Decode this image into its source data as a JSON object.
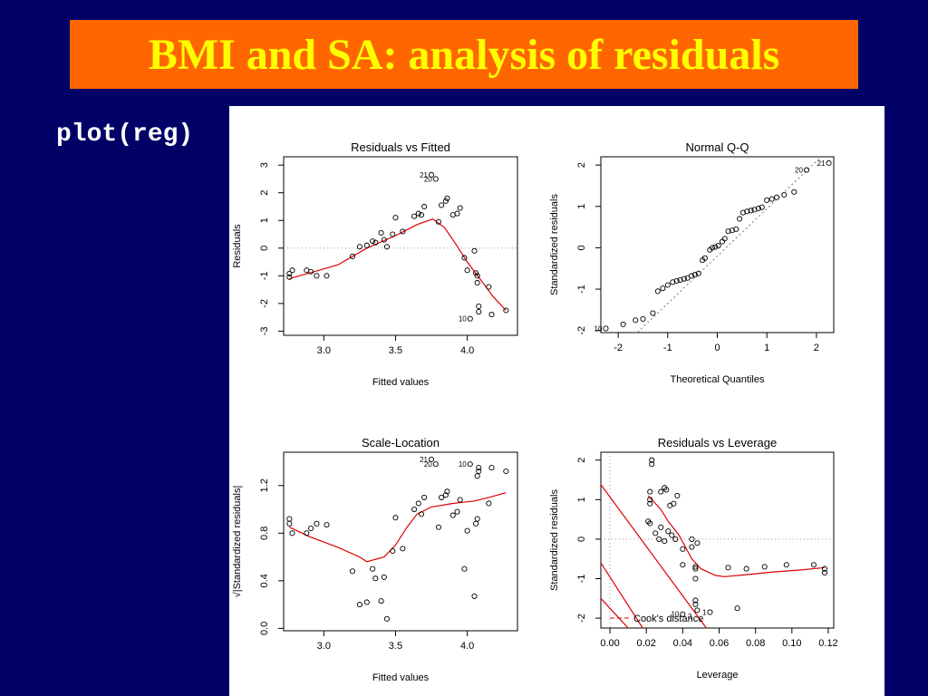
{
  "slide": {
    "title": "BMI and SA: analysis of residuals",
    "code": "plot(reg)",
    "colors": {
      "background": "#000066",
      "banner": "#ff6600",
      "title": "#ffff00",
      "curve": "#dd0000"
    }
  },
  "chart_data": [
    {
      "type": "scatter",
      "title": "Residuals vs Fitted",
      "xlabel": "Fitted values",
      "ylabel": "Residuals",
      "xlim": [
        2.72,
        4.35
      ],
      "ylim": [
        -3.15,
        3.3
      ],
      "xticks": [
        3.0,
        3.5,
        4.0
      ],
      "xticklabels": [
        "3.0",
        "3.5",
        "4.0"
      ],
      "yticks": [
        -3,
        -2,
        -1,
        0,
        1,
        2,
        3
      ],
      "yticklabels": [
        "-3",
        "-2",
        "-1",
        "0",
        "1",
        "2",
        "3"
      ],
      "hline": 0,
      "points": [
        [
          2.76,
          -0.92
        ],
        [
          2.76,
          -1.05
        ],
        [
          2.78,
          -0.8
        ],
        [
          2.88,
          -0.8
        ],
        [
          2.91,
          -0.85
        ],
        [
          2.95,
          -1.0
        ],
        [
          3.02,
          -1.0
        ],
        [
          3.2,
          -0.3
        ],
        [
          3.25,
          0.05
        ],
        [
          3.3,
          0.1
        ],
        [
          3.34,
          0.25
        ],
        [
          3.36,
          0.2
        ],
        [
          3.4,
          0.55
        ],
        [
          3.42,
          0.3
        ],
        [
          3.44,
          0.05
        ],
        [
          3.48,
          0.5
        ],
        [
          3.5,
          1.1
        ],
        [
          3.55,
          0.6
        ],
        [
          3.63,
          1.15
        ],
        [
          3.66,
          1.25
        ],
        [
          3.68,
          1.2
        ],
        [
          3.7,
          1.5
        ],
        [
          3.75,
          2.65
        ],
        [
          3.78,
          2.5
        ],
        [
          3.8,
          0.95
        ],
        [
          3.82,
          1.55
        ],
        [
          3.85,
          1.7
        ],
        [
          3.86,
          1.8
        ],
        [
          3.9,
          1.2
        ],
        [
          3.93,
          1.25
        ],
        [
          3.95,
          1.45
        ],
        [
          3.98,
          -0.35
        ],
        [
          4.0,
          -0.8
        ],
        [
          4.02,
          -2.55
        ],
        [
          4.05,
          -0.1
        ],
        [
          4.06,
          -0.9
        ],
        [
          4.07,
          -1.0
        ],
        [
          4.07,
          -1.25
        ],
        [
          4.08,
          -2.1
        ],
        [
          4.08,
          -2.3
        ],
        [
          4.15,
          -1.4
        ],
        [
          4.17,
          -2.4
        ],
        [
          4.27,
          -2.25
        ]
      ],
      "curve": [
        [
          2.76,
          -1.1
        ],
        [
          2.9,
          -0.9
        ],
        [
          3.1,
          -0.6
        ],
        [
          3.3,
          0.0
        ],
        [
          3.5,
          0.45
        ],
        [
          3.65,
          0.85
        ],
        [
          3.76,
          1.05
        ],
        [
          3.84,
          0.75
        ],
        [
          3.92,
          0.15
        ],
        [
          4.0,
          -0.5
        ],
        [
          4.08,
          -1.05
        ],
        [
          4.18,
          -1.75
        ],
        [
          4.27,
          -2.25
        ]
      ],
      "point_labels": [
        {
          "x": 3.75,
          "y": 2.65,
          "text": "21"
        },
        {
          "x": 3.78,
          "y": 2.5,
          "text": "20"
        },
        {
          "x": 4.02,
          "y": -2.55,
          "text": "10"
        }
      ]
    },
    {
      "type": "scatter",
      "title": "Normal Q-Q",
      "xlabel": "Theoretical Quantiles",
      "ylabel": "Standardized residuals",
      "xlim": [
        -2.35,
        2.35
      ],
      "ylim": [
        -2.05,
        2.2
      ],
      "xticks": [
        -2,
        -1,
        0,
        1,
        2
      ],
      "xticklabels": [
        "-2",
        "-1",
        "0",
        "1",
        "2"
      ],
      "yticks": [
        -2,
        -1,
        0,
        1,
        2
      ],
      "yticklabels": [
        "-2",
        "-1",
        "0",
        "1",
        "2"
      ],
      "refline": [
        [
          -2.4,
          -2.95
        ],
        [
          2.4,
          2.55
        ]
      ],
      "points": [
        [
          -2.25,
          -1.95
        ],
        [
          -1.9,
          -1.85
        ],
        [
          -1.65,
          -1.75
        ],
        [
          -1.5,
          -1.72
        ],
        [
          -1.3,
          -1.58
        ],
        [
          -1.2,
          -1.05
        ],
        [
          -1.1,
          -0.98
        ],
        [
          -1.0,
          -0.9
        ],
        [
          -0.9,
          -0.83
        ],
        [
          -0.82,
          -0.8
        ],
        [
          -0.75,
          -0.78
        ],
        [
          -0.67,
          -0.75
        ],
        [
          -0.6,
          -0.73
        ],
        [
          -0.52,
          -0.68
        ],
        [
          -0.45,
          -0.65
        ],
        [
          -0.38,
          -0.62
        ],
        [
          -0.3,
          -0.3
        ],
        [
          -0.25,
          -0.25
        ],
        [
          -0.15,
          -0.05
        ],
        [
          -0.1,
          0.0
        ],
        [
          -0.04,
          0.02
        ],
        [
          0.02,
          0.05
        ],
        [
          0.1,
          0.15
        ],
        [
          0.15,
          0.22
        ],
        [
          0.22,
          0.4
        ],
        [
          0.3,
          0.42
        ],
        [
          0.38,
          0.45
        ],
        [
          0.45,
          0.7
        ],
        [
          0.52,
          0.85
        ],
        [
          0.6,
          0.88
        ],
        [
          0.68,
          0.9
        ],
        [
          0.75,
          0.92
        ],
        [
          0.83,
          0.95
        ],
        [
          0.9,
          0.98
        ],
        [
          1.0,
          1.15
        ],
        [
          1.1,
          1.18
        ],
        [
          1.2,
          1.22
        ],
        [
          1.35,
          1.28
        ],
        [
          1.55,
          1.35
        ],
        [
          1.8,
          1.88
        ],
        [
          2.25,
          2.05
        ]
      ],
      "point_labels": [
        {
          "x": 2.25,
          "y": 2.05,
          "text": "21"
        },
        {
          "x": 1.8,
          "y": 1.88,
          "text": "20"
        },
        {
          "x": -2.25,
          "y": -1.95,
          "text": "10"
        }
      ]
    },
    {
      "type": "scatter",
      "title": "Scale-Location",
      "xlabel": "Fitted values",
      "ylabel": "√|Standardized residuals|",
      "xlim": [
        2.72,
        4.35
      ],
      "ylim": [
        -0.02,
        1.48
      ],
      "xticks": [
        3.0,
        3.5,
        4.0
      ],
      "xticklabels": [
        "3.0",
        "3.5",
        "4.0"
      ],
      "yticks": [
        0.0,
        0.4,
        0.8,
        1.2
      ],
      "yticklabels": [
        "0.0",
        "0.4",
        "0.8",
        "1.2"
      ],
      "points": [
        [
          2.76,
          0.92
        ],
        [
          2.76,
          0.88
        ],
        [
          2.78,
          0.8
        ],
        [
          2.88,
          0.8
        ],
        [
          2.91,
          0.84
        ],
        [
          2.95,
          0.88
        ],
        [
          3.02,
          0.87
        ],
        [
          3.2,
          0.48
        ],
        [
          3.25,
          0.2
        ],
        [
          3.3,
          0.22
        ],
        [
          3.34,
          0.5
        ],
        [
          3.36,
          0.42
        ],
        [
          3.4,
          0.23
        ],
        [
          3.42,
          0.43
        ],
        [
          3.44,
          0.08
        ],
        [
          3.48,
          0.65
        ],
        [
          3.5,
          0.93
        ],
        [
          3.55,
          0.67
        ],
        [
          3.63,
          1.0
        ],
        [
          3.66,
          1.05
        ],
        [
          3.68,
          0.96
        ],
        [
          3.7,
          1.1
        ],
        [
          3.75,
          1.42
        ],
        [
          3.78,
          1.38
        ],
        [
          3.8,
          0.85
        ],
        [
          3.82,
          1.1
        ],
        [
          3.85,
          1.12
        ],
        [
          3.86,
          1.15
        ],
        [
          3.9,
          0.95
        ],
        [
          3.93,
          0.98
        ],
        [
          3.95,
          1.08
        ],
        [
          3.98,
          0.5
        ],
        [
          4.0,
          0.82
        ],
        [
          4.02,
          1.38
        ],
        [
          4.05,
          0.27
        ],
        [
          4.06,
          0.88
        ],
        [
          4.07,
          0.92
        ],
        [
          4.07,
          1.28
        ],
        [
          4.08,
          1.32
        ],
        [
          4.08,
          1.35
        ],
        [
          4.15,
          1.05
        ],
        [
          4.17,
          1.35
        ],
        [
          4.27,
          1.32
        ]
      ],
      "curve": [
        [
          2.76,
          0.85
        ],
        [
          2.9,
          0.77
        ],
        [
          3.1,
          0.68
        ],
        [
          3.25,
          0.6
        ],
        [
          3.3,
          0.56
        ],
        [
          3.42,
          0.6
        ],
        [
          3.5,
          0.7
        ],
        [
          3.58,
          0.85
        ],
        [
          3.65,
          0.96
        ],
        [
          3.75,
          1.02
        ],
        [
          3.9,
          1.05
        ],
        [
          4.05,
          1.07
        ],
        [
          4.15,
          1.1
        ],
        [
          4.27,
          1.14
        ]
      ],
      "point_labels": [
        {
          "x": 3.75,
          "y": 1.42,
          "text": "21"
        },
        {
          "x": 3.78,
          "y": 1.38,
          "text": "20"
        },
        {
          "x": 4.02,
          "y": 1.38,
          "text": "10"
        }
      ]
    },
    {
      "type": "scatter",
      "title": "Residuals vs Leverage",
      "xlabel": "Leverage",
      "ylabel": "Standardized residuals",
      "xlim": [
        -0.005,
        0.123
      ],
      "ylim": [
        -2.25,
        2.2
      ],
      "xticks": [
        0.0,
        0.02,
        0.04,
        0.06,
        0.08,
        0.1,
        0.12
      ],
      "xticklabels": [
        "0.00",
        "0.02",
        "0.04",
        "0.06",
        "0.08",
        "0.10",
        "0.12"
      ],
      "yticks": [
        -2,
        -1,
        0,
        1,
        2
      ],
      "yticklabels": [
        "-2",
        "-1",
        "0",
        "1",
        "2"
      ],
      "hline": 0,
      "vline": 0,
      "points": [
        [
          0.023,
          2.0
        ],
        [
          0.023,
          1.9
        ],
        [
          0.022,
          1.2
        ],
        [
          0.022,
          1.0
        ],
        [
          0.022,
          0.9
        ],
        [
          0.021,
          0.45
        ],
        [
          0.022,
          0.4
        ],
        [
          0.025,
          0.15
        ],
        [
          0.028,
          0.3
        ],
        [
          0.027,
          0.0
        ],
        [
          0.03,
          1.3
        ],
        [
          0.031,
          1.25
        ],
        [
          0.028,
          1.2
        ],
        [
          0.033,
          0.85
        ],
        [
          0.035,
          0.9
        ],
        [
          0.037,
          1.1
        ],
        [
          0.03,
          -0.05
        ],
        [
          0.032,
          0.2
        ],
        [
          0.034,
          0.1
        ],
        [
          0.036,
          0.0
        ],
        [
          0.04,
          -0.25
        ],
        [
          0.04,
          -0.65
        ],
        [
          0.04,
          -1.9
        ],
        [
          0.045,
          0.0
        ],
        [
          0.045,
          -0.2
        ],
        [
          0.047,
          -0.7
        ],
        [
          0.047,
          -0.75
        ],
        [
          0.047,
          -1.0
        ],
        [
          0.047,
          -1.55
        ],
        [
          0.047,
          -1.65
        ],
        [
          0.048,
          -1.8
        ],
        [
          0.048,
          -0.1
        ],
        [
          0.055,
          -1.85
        ],
        [
          0.065,
          -0.72
        ],
        [
          0.07,
          -1.75
        ],
        [
          0.075,
          -0.75
        ],
        [
          0.085,
          -0.7
        ],
        [
          0.097,
          -0.65
        ],
        [
          0.112,
          -0.65
        ],
        [
          0.118,
          -0.75
        ],
        [
          0.118,
          -0.85
        ]
      ],
      "curve": [
        [
          0.021,
          1.1
        ],
        [
          0.024,
          0.95
        ],
        [
          0.028,
          0.75
        ],
        [
          0.032,
          0.45
        ],
        [
          0.038,
          0.1
        ],
        [
          0.045,
          -0.5
        ],
        [
          0.05,
          -0.75
        ],
        [
          0.058,
          -0.92
        ],
        [
          0.063,
          -0.95
        ],
        [
          0.075,
          -0.9
        ],
        [
          0.09,
          -0.83
        ],
        [
          0.105,
          -0.78
        ],
        [
          0.118,
          -0.72
        ]
      ],
      "cooks_lines": [
        [
          [
            -0.005,
            1.38
          ],
          [
            0.053,
            -2.25
          ]
        ],
        [
          [
            -0.005,
            -0.6
          ],
          [
            0.018,
            -2.25
          ]
        ],
        [
          [
            -0.005,
            -1.5
          ],
          [
            0.01,
            -2.25
          ]
        ]
      ],
      "legend": {
        "text": "Cook's distance",
        "placement": "bottom-left"
      },
      "point_labels": [
        {
          "x": 0.04,
          "y": -1.9,
          "text": "10"
        },
        {
          "x": 0.047,
          "y": -1.95,
          "text": "3"
        },
        {
          "x": 0.055,
          "y": -1.85,
          "text": "1"
        }
      ]
    }
  ]
}
